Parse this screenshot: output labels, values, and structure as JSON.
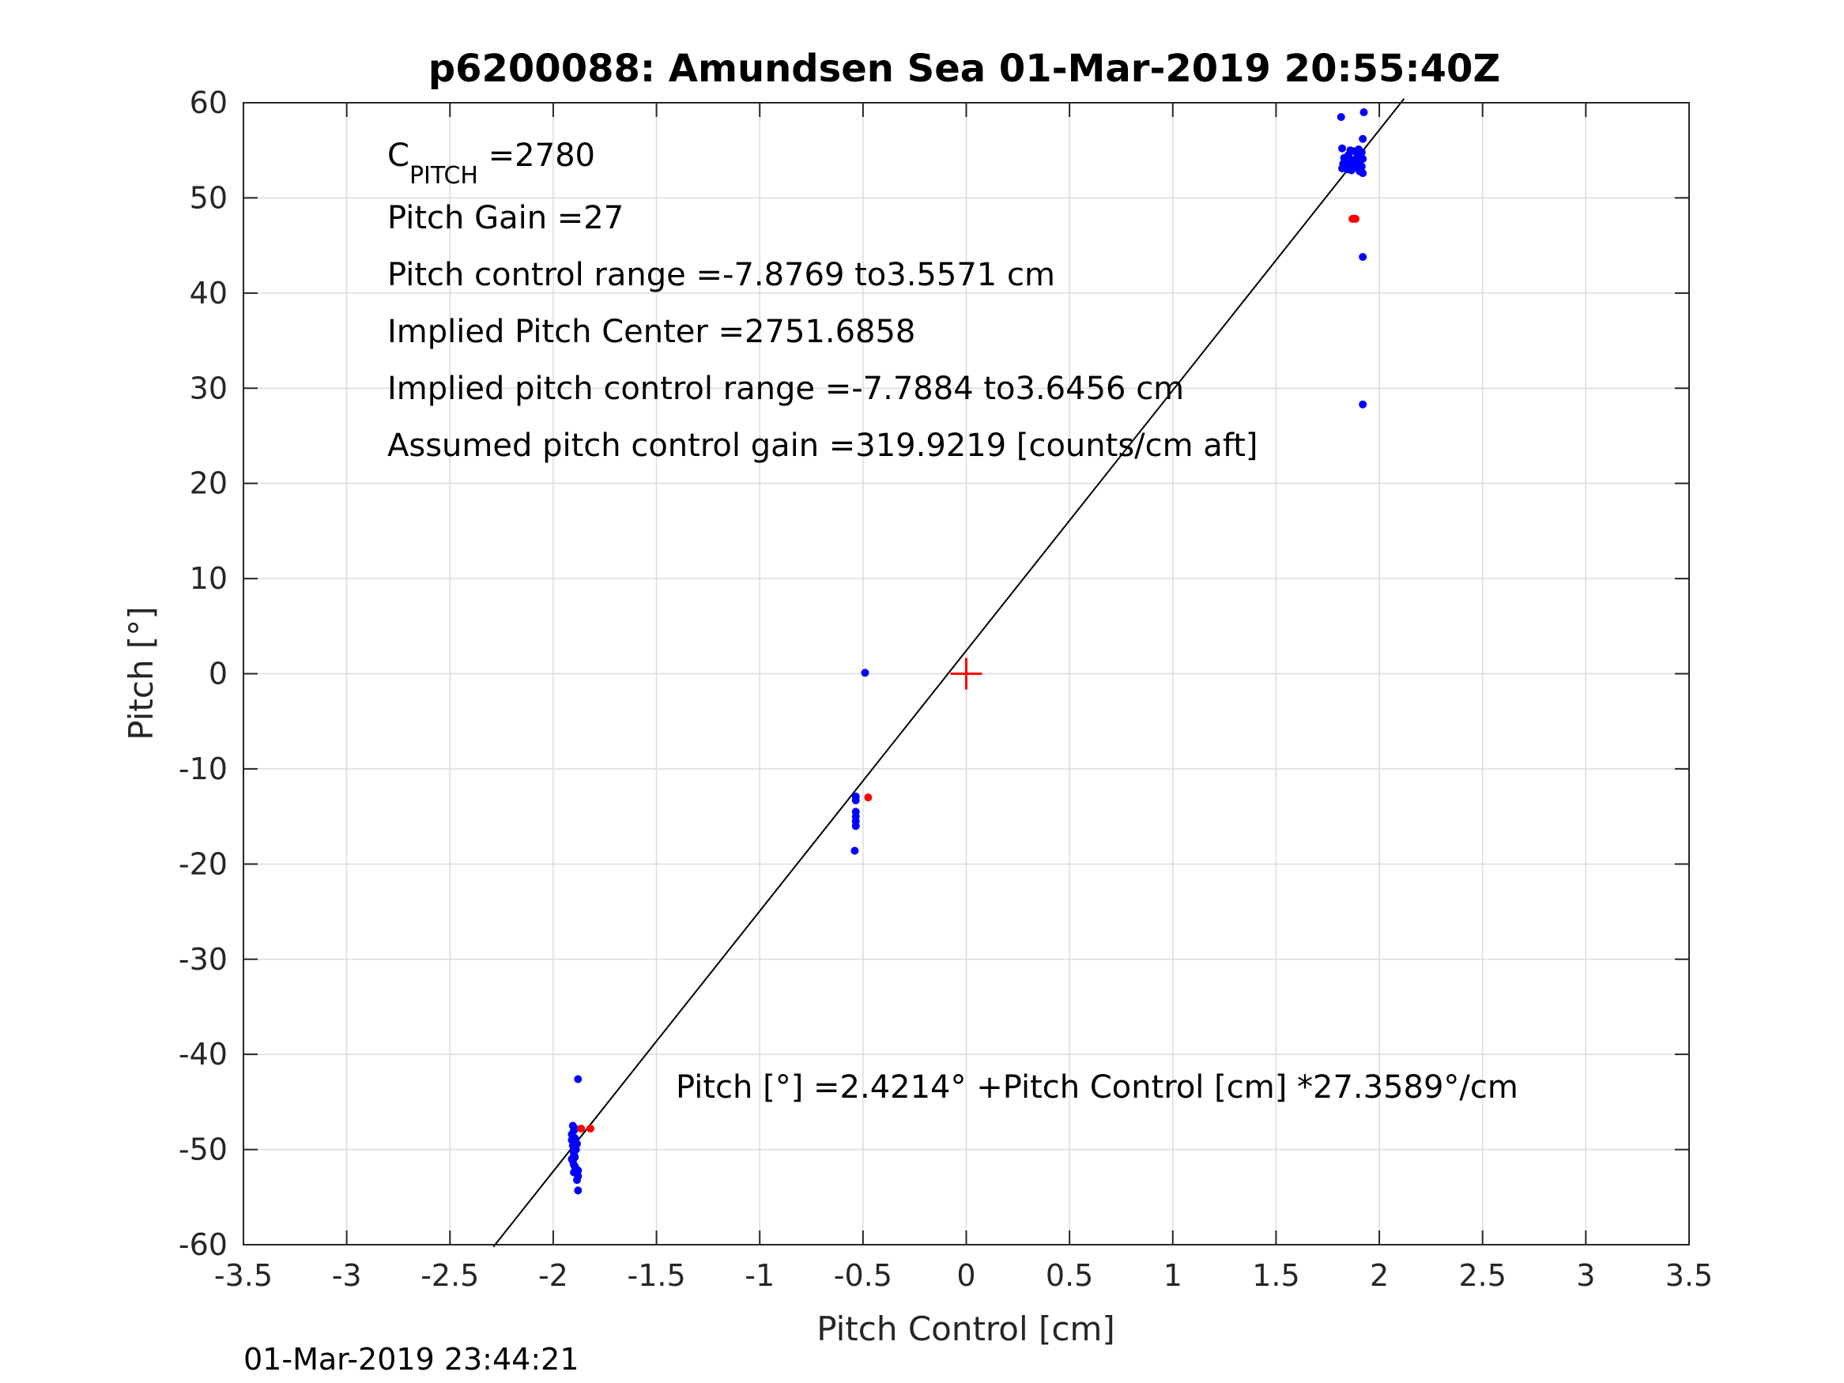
{
  "chart_data": {
    "type": "scatter",
    "title": "p6200088: Amundsen Sea 01-Mar-2019 20:55:40Z",
    "xlabel": "Pitch Control [cm]",
    "ylabel": "Pitch [°]",
    "xlim": [
      -3.5,
      3.5
    ],
    "ylim": [
      -60,
      60
    ],
    "xticks": [
      -3.5,
      -3,
      -2.5,
      -2,
      -1.5,
      -1,
      -0.5,
      0,
      0.5,
      1,
      1.5,
      2,
      2.5,
      3,
      3.5
    ],
    "xtick_labels": [
      "-3.5",
      "-3",
      "-2.5",
      "-2",
      "-1.5",
      "-1",
      "-0.5",
      "0",
      "0.5",
      "1",
      "1.5",
      "2",
      "2.5",
      "3",
      "3.5"
    ],
    "yticks": [
      -60,
      -50,
      -40,
      -30,
      -20,
      -10,
      0,
      10,
      20,
      30,
      40,
      50,
      60
    ],
    "ytick_labels": [
      "-60",
      "-50",
      "-40",
      "-30",
      "-20",
      "-10",
      "0",
      "10",
      "20",
      "30",
      "40",
      "50",
      "60"
    ],
    "grid": true,
    "colors": {
      "observed": "#0000ff",
      "rejected": "#ff0000",
      "fit": "#000000",
      "center_marker": "#ff0000"
    },
    "series": [
      {
        "color": "#0000ff",
        "points": [
          [
            -1.88,
            -42.6
          ],
          [
            -1.905,
            -47.5
          ],
          [
            -1.9,
            -48.0
          ],
          [
            -1.91,
            -48.4
          ],
          [
            -1.895,
            -48.8
          ],
          [
            -1.9,
            -49.2
          ],
          [
            -1.905,
            -49.6
          ],
          [
            -1.89,
            -50.0
          ],
          [
            -1.9,
            -50.4
          ],
          [
            -1.895,
            -50.8
          ],
          [
            -1.905,
            -51.2
          ],
          [
            -1.9,
            -51.6
          ],
          [
            -1.89,
            -52.0
          ],
          [
            -1.9,
            -52.4
          ],
          [
            -1.88,
            -52.8
          ],
          [
            -1.885,
            -53.2
          ],
          [
            -1.895,
            -47.8
          ],
          [
            -1.91,
            -49.0
          ],
          [
            -1.885,
            -49.4
          ],
          [
            -1.9,
            -50.2
          ],
          [
            -1.91,
            -51.0
          ],
          [
            -1.895,
            -51.8
          ],
          [
            -1.88,
            -52.2
          ],
          [
            -1.88,
            -54.3
          ],
          [
            -0.535,
            -12.9
          ],
          [
            -0.535,
            -13.3
          ],
          [
            -0.535,
            -14.5
          ],
          [
            -0.535,
            -15.0
          ],
          [
            -0.535,
            -15.5
          ],
          [
            -0.535,
            -16.0
          ],
          [
            -0.54,
            -18.6
          ],
          [
            -0.49,
            0.1
          ],
          [
            1.815,
            58.5
          ],
          [
            1.925,
            59.0
          ],
          [
            1.92,
            56.2
          ],
          [
            1.82,
            55.2
          ],
          [
            1.86,
            55.0
          ],
          [
            1.88,
            54.9
          ],
          [
            1.9,
            55.1
          ],
          [
            1.915,
            54.8
          ],
          [
            1.83,
            54.2
          ],
          [
            1.85,
            54.5
          ],
          [
            1.87,
            54.0
          ],
          [
            1.895,
            54.3
          ],
          [
            1.905,
            54.6
          ],
          [
            1.92,
            54.1
          ],
          [
            1.825,
            53.6
          ],
          [
            1.84,
            53.8
          ],
          [
            1.86,
            53.4
          ],
          [
            1.875,
            53.9
          ],
          [
            1.89,
            53.5
          ],
          [
            1.9,
            53.7
          ],
          [
            1.915,
            53.3
          ],
          [
            1.82,
            53.1
          ],
          [
            1.845,
            53.0
          ],
          [
            1.865,
            52.9
          ],
          [
            1.885,
            53.2
          ],
          [
            1.905,
            52.8
          ],
          [
            1.92,
            52.6
          ],
          [
            1.92,
            43.8
          ],
          [
            1.92,
            28.3
          ]
        ]
      },
      {
        "color": "#ff0000",
        "points": [
          [
            -1.865,
            -47.8
          ],
          [
            -1.82,
            -47.8
          ],
          [
            -0.475,
            -13.0
          ],
          [
            1.87,
            47.8
          ],
          [
            1.885,
            47.8
          ],
          [
            1.875,
            47.8
          ]
        ]
      }
    ],
    "fit_line": {
      "intercept": 2.4214,
      "slope": 27.3589,
      "x_range": [
        -2.29,
        2.12
      ]
    },
    "center_marker": [
      0,
      0
    ],
    "annotations": {
      "c_pitch_main": "C",
      "c_pitch_sub": "PITCH",
      "c_pitch_value": " =2780",
      "pitch_gain": "Pitch Gain =27",
      "pitch_control_range": "Pitch control range =-7.8769 to3.5571 cm",
      "implied_pitch_center": "Implied Pitch Center =2751.6858",
      "implied_control_range": "Implied pitch control range =-7.7884 to3.6456 cm",
      "assumed_gain": "Assumed pitch control gain =319.9219 [counts/cm aft]",
      "fit_equation": "Pitch [°] =2.4214° +Pitch Control [cm] *27.3589°/cm"
    },
    "timestamp": "01-Mar-2019 23:44:21"
  }
}
